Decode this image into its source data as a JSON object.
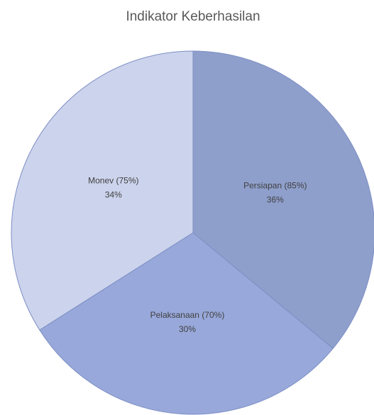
{
  "chart_data": {
    "type": "pie",
    "title": "Indikator Keberhasilan",
    "categories": [
      "Persiapan (85%)",
      "Pelaksanaan (70%)",
      "Monev (75%)"
    ],
    "values": [
      36,
      30,
      34
    ],
    "value_labels": [
      "36%",
      "30%",
      "34%"
    ],
    "colors": [
      "#8f9fcc",
      "#98a8da",
      "#ccd3ec"
    ]
  }
}
